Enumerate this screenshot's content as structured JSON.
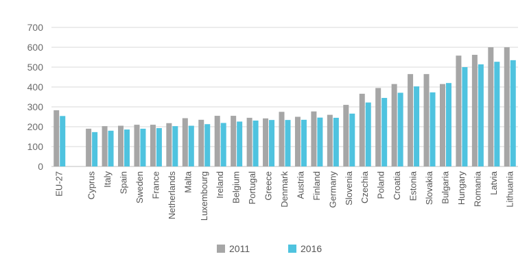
{
  "chart_data": {
    "type": "bar",
    "title": "",
    "xlabel": "",
    "ylabel": "",
    "ylim": [
      0,
      700
    ],
    "yticks": [
      0,
      100,
      200,
      300,
      400,
      500,
      600,
      700
    ],
    "grid": true,
    "legend_position": "bottom",
    "categories": [
      "EU-27",
      "",
      "Cyprus",
      "Italy",
      "Spain",
      "Sweden",
      "France",
      "Netherlands",
      "Malta",
      "Luxembourg",
      "Ireland",
      "Belgium",
      "Portugal",
      "Greece",
      "Denmark",
      "Austria",
      "Finland",
      "Germany",
      "Slovenia",
      "Czechia",
      "Poland",
      "Croatia",
      "Estonia",
      "Slovakia",
      "Bulgaria",
      "Hungary",
      "Romania",
      "Latvia",
      "Lithuania"
    ],
    "series": [
      {
        "name": "2011",
        "color": "#a6a6a6",
        "values": [
          283,
          null,
          190,
          203,
          205,
          210,
          210,
          218,
          243,
          235,
          255,
          255,
          245,
          242,
          275,
          250,
          277,
          260,
          310,
          366,
          395,
          415,
          465,
          465,
          415,
          558,
          562,
          600,
          600
        ]
      },
      {
        "name": "2016",
        "color": "#4fc3df",
        "values": [
          254,
          null,
          173,
          180,
          186,
          190,
          193,
          203,
          205,
          213,
          219,
          226,
          231,
          234,
          234,
          235,
          246,
          245,
          266,
          322,
          345,
          371,
          403,
          373,
          420,
          500,
          514,
          527,
          535
        ]
      }
    ]
  }
}
